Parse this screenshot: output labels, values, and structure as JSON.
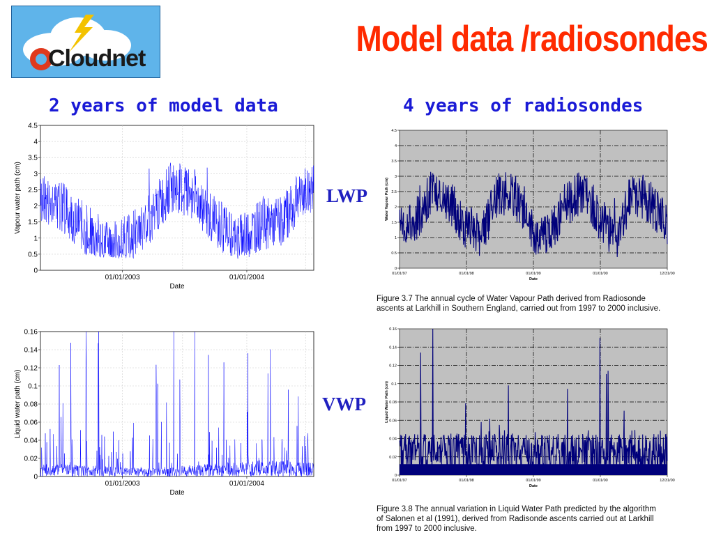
{
  "slide": {
    "title": "Model data /radiosondes",
    "logo_text": "Cloudnet",
    "heading_left": "2 years of model data",
    "heading_right": "4 years of radiosondes",
    "label_lwp": "LWP",
    "label_vwp": "VWP",
    "caption_1": "Figure 3.7 The annual cycle of Water Vapour Path derived from Radiosonde\nascents at Larkhill in Southern England, carried out from 1997 to 2000 inclusive.",
    "caption_2": "Figure 3.8  The annual variation in Liquid Water Path predicted by the algorithm\nof Salonen et al (1991), derived from Radisonde ascents carried out at Larkhill\nfrom 1997 to 2000 inclusive.",
    "colors": {
      "title": "#ff2a00",
      "heading": "#1a1ad6",
      "model_line": "#0000ff",
      "sonde_line": "#00007a",
      "sonde_bg": "#c0c0c0"
    }
  },
  "chart_data": [
    {
      "id": "model-vapour",
      "type": "line",
      "title": "",
      "xlabel": "Date",
      "ylabel": "Vapour water path (cm)",
      "ylim": [
        0,
        4.5
      ],
      "yticks": [
        "0",
        "0.5",
        "1",
        "1.5",
        "2",
        "2.5",
        "3",
        "3.5",
        "4",
        "4.5"
      ],
      "xticks": [
        "01/01/2003",
        "01/01/2004"
      ],
      "grid": true,
      "series": [
        {
          "x": [
            0,
            0.08,
            0.16,
            0.24,
            0.32,
            0.4,
            0.48,
            0.56,
            0.64,
            0.72,
            0.8,
            0.88,
            0.96,
            1.0
          ],
          "values": [
            2.2,
            2.0,
            1.3,
            0.8,
            0.9,
            1.6,
            2.6,
            2.4,
            1.5,
            0.9,
            1.4,
            1.5,
            2.4,
            2.5
          ]
        }
      ]
    },
    {
      "id": "sonde-vapour",
      "type": "line",
      "title": "",
      "xlabel": "Date",
      "ylabel": "Water Vapour Path (cm)",
      "ylim": [
        0,
        4.5
      ],
      "yticks": [
        "0",
        "0.5",
        "1",
        "1.5",
        "2",
        "2.5",
        "3",
        "3.5",
        "4",
        "4.5"
      ],
      "xticks": [
        "01/01/97",
        "01/01/98",
        "01/01/99",
        "01/01/00",
        "12/31/00"
      ],
      "grid": true,
      "series": [
        {
          "x": [
            0,
            0.06,
            0.12,
            0.18,
            0.25,
            0.31,
            0.37,
            0.43,
            0.5,
            0.56,
            0.62,
            0.68,
            0.75,
            0.81,
            0.87,
            0.93,
            1.0
          ],
          "values": [
            1.2,
            1.5,
            2.6,
            2.3,
            1.3,
            1.1,
            2.5,
            2.4,
            1.2,
            1.0,
            2.1,
            2.5,
            1.6,
            1.0,
            2.5,
            2.2,
            1.3
          ]
        }
      ]
    },
    {
      "id": "model-liquid",
      "type": "line",
      "title": "",
      "xlabel": "Date",
      "ylabel": "Liquid water path (cm)",
      "ylim": [
        0,
        0.16
      ],
      "yticks": [
        "0",
        "0.02",
        "0.04",
        "0.06",
        "0.08",
        "0.1",
        "0.12",
        "0.14",
        "0.16"
      ],
      "xticks": [
        "01/01/2003",
        "01/01/2004"
      ],
      "grid": true,
      "series": [
        {
          "x": [
            0,
            0.2,
            0.4,
            0.6,
            0.8,
            1.0
          ],
          "values": [
            0.01,
            0.008,
            0.006,
            0.009,
            0.012,
            0.01
          ]
        }
      ]
    },
    {
      "id": "sonde-liquid",
      "type": "line",
      "title": "",
      "xlabel": "Date",
      "ylabel": "Liquid Water Path (cm)",
      "ylim": [
        0,
        0.16
      ],
      "yticks": [
        "0",
        "0.02",
        "0.04",
        "0.06",
        "0.08",
        "0.1",
        "0.12",
        "0.14",
        "0.16"
      ],
      "xticks": [
        "01/01/97",
        "01/01/98",
        "01/01/99",
        "01/01/00",
        "12/31/00"
      ],
      "grid": true,
      "series": [
        {
          "x": [
            0,
            0.25,
            0.5,
            0.75,
            1.0
          ],
          "values": [
            0.03,
            0.03,
            0.03,
            0.03,
            0.03
          ]
        }
      ]
    }
  ]
}
